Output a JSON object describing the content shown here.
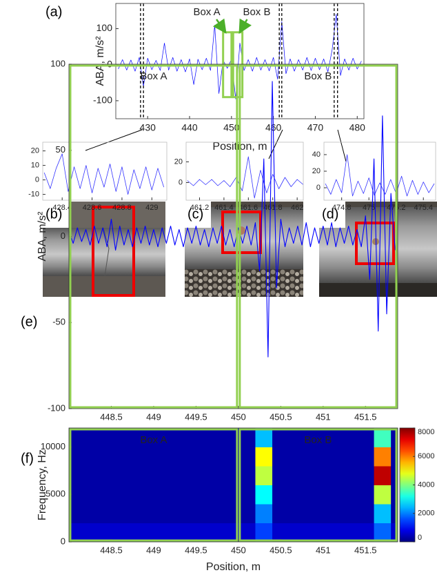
{
  "panel_labels": [
    "(a)",
    "(b)",
    "(c)",
    "(d)",
    "(e)",
    "(f)"
  ],
  "chart_data": [
    {
      "type": "line",
      "x_label": "Position, m",
      "y_label": "ABA, m/s²",
      "xlim": [
        422.4,
        481.6
      ],
      "ylim": [
        -150,
        170
      ],
      "xticks": [
        430,
        440,
        450,
        460,
        470,
        480
      ],
      "yticks": [
        -100,
        0,
        100
      ],
      "series": [
        {
          "color": "#0000ff",
          "x": [
            423,
            424,
            425,
            426,
            427,
            428,
            429,
            430,
            431,
            432,
            433,
            434,
            435,
            436,
            437,
            438,
            439,
            440,
            441,
            442,
            443,
            444,
            445,
            446,
            447,
            448,
            449,
            450,
            451,
            452,
            453,
            454,
            455,
            456,
            457,
            458,
            459,
            460,
            461,
            462,
            463,
            464,
            465,
            466,
            467,
            468,
            469,
            470,
            471,
            472,
            473,
            474,
            475,
            476,
            477,
            478,
            479,
            480,
            481
          ],
          "values": [
            -12,
            14,
            -15,
            13,
            -18,
            20,
            -60,
            18,
            -14,
            12,
            -16,
            60,
            -15,
            20,
            -18,
            14,
            -20,
            16,
            -55,
            15,
            -14,
            18,
            -16,
            110,
            -80,
            12,
            -10,
            15,
            -95,
            60,
            -16,
            14,
            -18,
            20,
            -15,
            14,
            -17,
            20,
            -40,
            120,
            -25,
            16,
            -18,
            14,
            -15,
            20,
            -16,
            18,
            -14,
            16,
            -20,
            40,
            140,
            -30,
            16,
            -15,
            18,
            -12,
            10
          ]
        }
      ],
      "vlines": [
        428.3,
        429.0,
        461.4,
        462.0,
        474.5,
        475.3
      ],
      "boxes": [
        {
          "label": "Box A",
          "x": [
            448,
            450
          ],
          "y": [
            -90,
            90
          ]
        },
        {
          "label": "Box B",
          "x": [
            450.4,
            452.6
          ],
          "y": [
            -90,
            90
          ]
        }
      ],
      "box_color": "#92d050"
    },
    {
      "type": "line",
      "xlim": [
        428.27,
        429.1
      ],
      "ylim": [
        -14,
        26
      ],
      "xticks": [
        428.4,
        428.6,
        428.8,
        429
      ],
      "yticks": [
        -10,
        0,
        10,
        20
      ],
      "series": [
        {
          "color": "#3333ff",
          "x": [
            428.28,
            428.32,
            428.36,
            428.4,
            428.44,
            428.48,
            428.52,
            428.56,
            428.6,
            428.64,
            428.68,
            428.72,
            428.76,
            428.8,
            428.84,
            428.88,
            428.92,
            428.96,
            429.0,
            429.04,
            429.08
          ],
          "values": [
            5,
            -6,
            8,
            18,
            -8,
            9,
            -6,
            10,
            -9,
            8,
            -5,
            11,
            -8,
            9,
            -10,
            7,
            -6,
            9,
            -7,
            8,
            -5
          ]
        }
      ]
    },
    {
      "type": "line",
      "xlim": [
        461.09,
        462.05
      ],
      "ylim": [
        -17,
        39
      ],
      "xticks": [
        461.2,
        461.4,
        461.6,
        461.8,
        462
      ],
      "yticks": [
        0,
        20
      ],
      "series": [
        {
          "color": "#3333ff",
          "x": [
            461.1,
            461.15,
            461.2,
            461.25,
            461.3,
            461.35,
            461.4,
            461.45,
            461.5,
            461.55,
            461.6,
            461.65,
            461.7,
            461.75,
            461.8,
            461.85,
            461.9,
            461.95,
            462.0,
            462.05
          ],
          "values": [
            2,
            -3,
            3,
            -2,
            3,
            -3,
            2,
            -4,
            5,
            -8,
            25,
            -15,
            12,
            -10,
            8,
            -6,
            5,
            -4,
            3,
            -2
          ]
        }
      ]
    },
    {
      "type": "line",
      "xlim": [
        474.67,
        475.49
      ],
      "ylim": [
        -15,
        55
      ],
      "xticks": [
        474.8,
        475,
        475.2,
        475.4
      ],
      "yticks": [
        0,
        20,
        40
      ],
      "series": [
        {
          "color": "#3333ff",
          "x": [
            474.68,
            474.72,
            474.76,
            474.8,
            474.84,
            474.88,
            474.92,
            474.96,
            475.0,
            475.04,
            475.08,
            475.12,
            475.16,
            475.2,
            475.24,
            475.28,
            475.32,
            475.36,
            475.4,
            475.44,
            475.48
          ],
          "values": [
            5,
            -8,
            10,
            -6,
            40,
            -10,
            8,
            -7,
            12,
            -9,
            6,
            -8,
            10,
            -7,
            14,
            -10,
            9,
            -8,
            7,
            -6,
            5
          ]
        }
      ]
    },
    {
      "type": "line",
      "x_label": "Position, m",
      "y_label": "ABA, m/s²",
      "xlim": [
        448,
        451.88
      ],
      "ylim": [
        -100,
        100
      ],
      "xticks": [
        448.5,
        449,
        449.5,
        450,
        450.5,
        451,
        451.5
      ],
      "yticks": [
        -100,
        -50,
        0,
        50,
        100
      ],
      "series": [
        {
          "color": "#0000ff",
          "x": [
            448.0,
            448.05,
            448.1,
            448.15,
            448.2,
            448.25,
            448.3,
            448.35,
            448.4,
            448.45,
            448.5,
            448.55,
            448.6,
            448.65,
            448.7,
            448.75,
            448.8,
            448.85,
            448.9,
            448.95,
            449.0,
            449.05,
            449.1,
            449.15,
            449.2,
            449.25,
            449.3,
            449.35,
            449.4,
            449.45,
            449.5,
            449.55,
            449.6,
            449.65,
            449.7,
            449.75,
            449.8,
            449.85,
            449.9,
            449.95,
            450.0,
            450.05,
            450.1,
            450.15,
            450.2,
            450.25,
            450.3,
            450.35,
            450.4,
            450.45,
            450.5,
            450.55,
            450.6,
            450.65,
            450.7,
            450.75,
            450.8,
            450.85,
            450.9,
            450.95,
            451.0,
            451.05,
            451.1,
            451.15,
            451.2,
            451.25,
            451.3,
            451.35,
            451.4,
            451.45,
            451.5,
            451.55,
            451.6,
            451.65,
            451.7,
            451.75,
            451.8,
            451.85
          ],
          "values": [
            3,
            -4,
            5,
            -3,
            4,
            -5,
            6,
            -4,
            5,
            -6,
            10,
            -8,
            6,
            -5,
            4,
            -6,
            5,
            -4,
            6,
            -5,
            4,
            -6,
            5,
            -4,
            6,
            -5,
            4,
            -6,
            5,
            -4,
            6,
            -5,
            4,
            -6,
            5,
            -4,
            6,
            -5,
            4,
            -6,
            5,
            -4,
            6,
            -5,
            8,
            -20,
            45,
            -70,
            90,
            -30,
            10,
            -6,
            5,
            -4,
            6,
            -5,
            8,
            -6,
            5,
            -4,
            6,
            -5,
            8,
            -6,
            5,
            -4,
            6,
            -5,
            4,
            -6,
            12,
            -25,
            45,
            -55,
            70,
            -45,
            25,
            -8
          ]
        }
      ],
      "boxes": [
        {
          "label": "Box A",
          "x": [
            448,
            450
          ],
          "y": [
            -100,
            100
          ]
        },
        {
          "label": "Box B",
          "x": [
            450,
            451.88
          ],
          "y": [
            -100,
            100
          ]
        }
      ],
      "box_color": "#92d050"
    },
    {
      "type": "heatmap",
      "x_label": "Position, m",
      "y_label": "Frequency, Hz",
      "xlim": [
        448,
        451.88
      ],
      "ylim": [
        0,
        12000
      ],
      "xticks": [
        448.5,
        449,
        449.5,
        450,
        450.5,
        451,
        451.5
      ],
      "yticks": [
        0,
        5000,
        10000
      ],
      "colormap": "jet",
      "clim": [
        0,
        8000
      ],
      "cticks": [
        0,
        2000,
        4000,
        6000,
        8000
      ],
      "x_bins": [
        448.0,
        448.2,
        448.4,
        448.6,
        448.8,
        449.0,
        449.2,
        449.4,
        449.6,
        449.8,
        450.0,
        450.2,
        450.4,
        450.6,
        450.8,
        451.0,
        451.2,
        451.4,
        451.6,
        451.8,
        451.88
      ],
      "y_bins": [
        0,
        2000,
        4000,
        6000,
        8000,
        10000,
        12000
      ],
      "z": [
        [
          600,
          600,
          600,
          600,
          600,
          600,
          600,
          600,
          600,
          600,
          600,
          1500,
          600,
          600,
          600,
          600,
          600,
          600,
          1800,
          600
        ],
        [
          300,
          300,
          300,
          300,
          300,
          300,
          300,
          300,
          300,
          300,
          300,
          2000,
          300,
          300,
          300,
          300,
          300,
          300,
          2500,
          300
        ],
        [
          300,
          300,
          300,
          300,
          300,
          300,
          300,
          300,
          300,
          300,
          300,
          3000,
          300,
          300,
          300,
          300,
          300,
          300,
          4500,
          300
        ],
        [
          300,
          300,
          300,
          300,
          300,
          300,
          300,
          300,
          300,
          300,
          300,
          4500,
          300,
          300,
          300,
          300,
          300,
          300,
          7500,
          300
        ],
        [
          300,
          300,
          300,
          300,
          300,
          300,
          300,
          300,
          300,
          300,
          300,
          5000,
          300,
          300,
          300,
          300,
          300,
          300,
          6000,
          300
        ],
        [
          300,
          300,
          300,
          300,
          300,
          300,
          300,
          300,
          300,
          300,
          300,
          2500,
          300,
          300,
          300,
          300,
          300,
          300,
          3500,
          300
        ]
      ],
      "boxes": [
        {
          "label": "Box A",
          "x": [
            448,
            450
          ],
          "y": [
            0,
            12000
          ]
        },
        {
          "label": "Box B",
          "x": [
            450,
            451.88
          ],
          "y": [
            0,
            12000
          ]
        }
      ],
      "box_color": "#92d050"
    }
  ]
}
